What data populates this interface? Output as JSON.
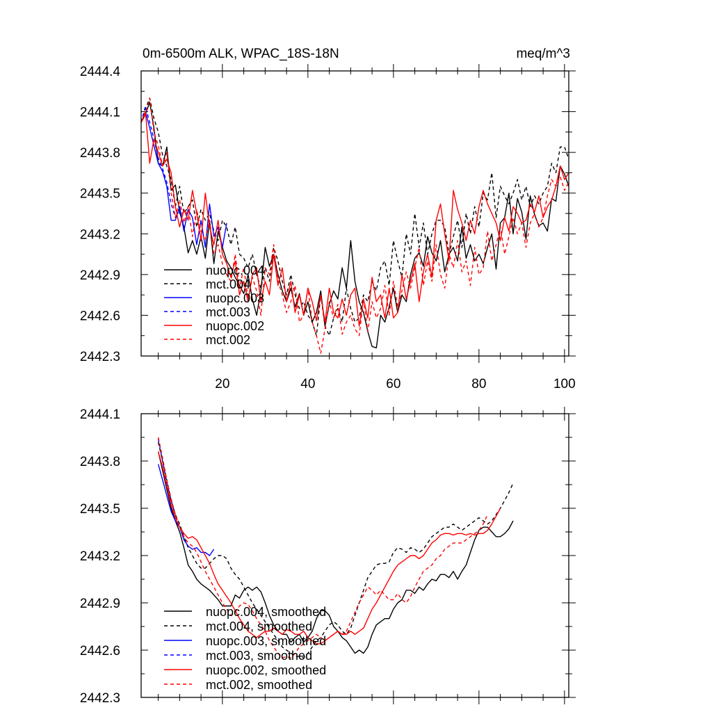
{
  "chart_data": [
    {
      "type": "line",
      "title": "0m-6500m ALK, WPAC_18S-18N",
      "units": "meq/m^3",
      "xlim": [
        1,
        101
      ],
      "ylim": [
        2442.3,
        2444.4
      ],
      "xticks": [
        20,
        40,
        60,
        80,
        100
      ],
      "yticks": [
        2442.3,
        2442.6,
        2442.9,
        2443.2,
        2443.5,
        2443.8,
        2444.1,
        2444.4
      ],
      "ytick_labels": [
        "2442.3",
        "2442.6",
        "2442.9",
        "2443.2",
        "2443.5",
        "2443.8",
        "2444.1",
        "2444.4"
      ],
      "xtick_labels": [
        "20",
        "40",
        "60",
        "80",
        "100"
      ],
      "legend_position": "lower-left",
      "series": [
        {
          "name": "nuopc.004",
          "color": "#000000",
          "dash": "solid",
          "x_start": 1,
          "values": [
            2444.02,
            2444.08,
            2444.17,
            2443.98,
            2443.72,
            2443.7,
            2443.84,
            2443.52,
            2443.56,
            2443.36,
            2443.25,
            2443.06,
            2443.15,
            2443.05,
            2443.18,
            2443.02,
            2443.3,
            2442.98,
            2443.22,
            2443.1,
            2443.0,
            2442.95,
            2442.88,
            2442.82,
            2442.76,
            2442.9,
            2442.72,
            2442.6,
            2442.78,
            2443.1,
            2442.96,
            2443.05,
            2442.9,
            2442.78,
            2442.7,
            2442.8,
            2442.66,
            2442.76,
            2442.6,
            2442.7,
            2442.55,
            2442.62,
            2442.78,
            2442.52,
            2442.68,
            2442.78,
            2442.72,
            2442.95,
            2442.8,
            2443.15,
            2442.85,
            2442.7,
            2442.62,
            2442.48,
            2442.37,
            2442.36,
            2442.6,
            2442.55,
            2442.66,
            2442.8,
            2442.62,
            2442.75,
            2442.7,
            2442.9,
            2443.02,
            2443.06,
            2442.96,
            2443.18,
            2443.06,
            2443.0,
            2443.15,
            2442.92,
            2443.05,
            2443.1,
            2443.0,
            2443.25,
            2443.02,
            2443.12,
            2443.0,
            2443.05,
            2442.98,
            2443.1,
            2443.2,
            2442.94,
            2443.28,
            2443.32,
            2443.5,
            2443.2,
            2443.46,
            2443.36,
            2443.16,
            2443.48,
            2443.34,
            2443.26,
            2443.28,
            2443.22,
            2443.46,
            2443.44,
            2443.7,
            2443.64,
            2443.55
          ]
        },
        {
          "name": "mct.004",
          "color": "#000000",
          "dash": "dashed",
          "x_start": 1,
          "values": [
            2444.02,
            2444.12,
            2444.2,
            2444.05,
            2443.95,
            2443.78,
            2443.7,
            2443.6,
            2443.4,
            2443.55,
            2443.35,
            2443.4,
            2443.45,
            2443.25,
            2443.38,
            2443.3,
            2443.35,
            2443.22,
            2443.15,
            2443.3,
            2443.25,
            2443.12,
            2443.25,
            2443.05,
            2443.02,
            2442.95,
            2443.05,
            2442.9,
            2442.8,
            2442.95,
            2442.85,
            2443.1,
            2443.0,
            2442.85,
            2442.75,
            2442.9,
            2442.75,
            2442.65,
            2442.7,
            2442.6,
            2442.55,
            2442.45,
            2442.75,
            2442.52,
            2442.45,
            2442.58,
            2442.65,
            2442.55,
            2442.8,
            2442.65,
            2442.55,
            2442.58,
            2442.75,
            2442.7,
            2442.85,
            2442.78,
            2442.95,
            2443.0,
            2442.82,
            2443.15,
            2443.0,
            2442.88,
            2443.2,
            2443.05,
            2443.35,
            2443.1,
            2443.28,
            2443.05,
            2443.2,
            2443.3,
            2443.3,
            2443.25,
            2443.05,
            2443.18,
            2443.3,
            2443.1,
            2443.35,
            2443.2,
            2443.4,
            2443.25,
            2443.5,
            2443.45,
            2443.65,
            2443.32,
            2443.55,
            2443.48,
            2443.42,
            2443.5,
            2443.6,
            2443.45,
            2443.55,
            2443.4,
            2443.48,
            2443.42,
            2443.5,
            2443.55,
            2443.72,
            2443.65,
            2443.84,
            2443.84,
            2443.75
          ]
        },
        {
          "name": "nuopc.003",
          "color": "#0000ff",
          "dash": "solid",
          "x_start": 1,
          "values": [
            2444.02,
            2444.1,
            2443.98,
            2443.85,
            2443.72,
            2443.66,
            2443.55,
            2443.3,
            2443.3,
            2443.4,
            2443.22,
            2443.38,
            2443.32,
            2443.12,
            2443.3,
            2443.1,
            2443.42,
            2443.18,
            2443.25,
            2443.1,
            2443.28
          ]
        },
        {
          "name": "mct.003",
          "color": "#0000ff",
          "dash": "dashed",
          "x_start": 1,
          "values": [
            2444.02,
            2444.14,
            2444.02,
            2443.9,
            2443.76,
            2443.68,
            2443.58,
            2443.42,
            2443.32,
            2443.36
          ]
        },
        {
          "name": "nuopc.002",
          "color": "#ff0000",
          "dash": "solid",
          "x_start": 1,
          "values": [
            2444.02,
            2444.1,
            2443.72,
            2443.9,
            2443.8,
            2443.7,
            2443.75,
            2443.65,
            2443.4,
            2443.25,
            2443.38,
            2443.3,
            2443.52,
            2443.35,
            2443.15,
            2443.5,
            2443.25,
            2443.12,
            2443.3,
            2443.05,
            2442.98,
            2442.88,
            2443.0,
            2442.75,
            2442.85,
            2442.7,
            2442.9,
            2442.95,
            2442.7,
            2442.85,
            2442.75,
            2443.05,
            2442.82,
            2442.95,
            2442.7,
            2442.85,
            2442.62,
            2442.75,
            2442.6,
            2442.8,
            2442.7,
            2442.56,
            2442.75,
            2442.55,
            2442.8,
            2442.62,
            2442.58,
            2442.72,
            2442.6,
            2442.75,
            2442.8,
            2442.52,
            2442.72,
            2442.58,
            2442.88,
            2442.7,
            2442.75,
            2442.58,
            2442.8,
            2442.58,
            2442.62,
            2442.9,
            2442.72,
            2442.85,
            2442.98,
            2442.7,
            2442.92,
            2443.05,
            2442.88,
            2443.3,
            2443.42,
            2443.2,
            2443.0,
            2443.52,
            2443.38,
            2443.28,
            2443.15,
            2443.3,
            2443.2,
            2443.4,
            2443.52,
            2443.42,
            2443.35,
            2443.28,
            2443.15,
            2443.32,
            2443.22,
            2443.4,
            2443.35,
            2443.28,
            2443.3,
            2443.42,
            2443.36,
            2443.48,
            2443.32,
            2443.4,
            2443.45,
            2443.55,
            2443.7,
            2443.6,
            2443.65
          ]
        },
        {
          "name": "mct.002",
          "color": "#ff0000",
          "dash": "dashed",
          "x_start": 1,
          "values": [
            2444.02,
            2444.08,
            2444.2,
            2443.95,
            2443.85,
            2443.7,
            2443.8,
            2443.5,
            2443.32,
            2443.45,
            2443.28,
            2443.4,
            2443.18,
            2443.38,
            2443.22,
            2443.15,
            2443.3,
            2443.05,
            2443.12,
            2442.98,
            2442.9,
            2442.85,
            2443.05,
            2442.8,
            2442.95,
            2442.72,
            2442.88,
            2442.78,
            2442.6,
            2442.95,
            2442.9,
            2443.12,
            2442.85,
            2442.75,
            2442.62,
            2442.7,
            2442.82,
            2442.55,
            2442.6,
            2442.8,
            2442.55,
            2442.45,
            2442.32,
            2442.5,
            2442.7,
            2442.58,
            2442.68,
            2442.46,
            2442.55,
            2442.6,
            2442.5,
            2442.45,
            2442.72,
            2442.48,
            2442.7,
            2442.58,
            2442.65,
            2442.82,
            2442.6,
            2442.85,
            2442.66,
            2442.78,
            2442.92,
            2442.8,
            2442.95,
            2443.1,
            2442.82,
            2443.0,
            2442.85,
            2443.12,
            2442.9,
            2442.8,
            2443.05,
            2442.95,
            2443.15,
            2442.92,
            2443.0,
            2442.82,
            2443.1,
            2442.9,
            2442.95,
            2443.22,
            2443.0,
            2443.12,
            2443.25,
            2443.05,
            2443.18,
            2443.32,
            2443.2,
            2443.28,
            2443.1,
            2443.28,
            2443.35,
            2443.25,
            2443.32,
            2443.48,
            2443.6,
            2443.55,
            2443.62,
            2443.52,
            2443.58
          ]
        }
      ]
    },
    {
      "type": "line",
      "title": "",
      "xlim": [
        1,
        101
      ],
      "ylim": [
        2442.3,
        2444.1
      ],
      "xticks": [
        20,
        40,
        60,
        80,
        100
      ],
      "yticks": [
        2442.3,
        2442.6,
        2442.9,
        2443.2,
        2443.5,
        2443.8,
        2444.1
      ],
      "ytick_labels": [
        "2442.3",
        "2442.6",
        "2442.9",
        "2443.2",
        "2443.5",
        "2443.8",
        "2444.1"
      ],
      "legend_position": "lower-left",
      "series": [
        {
          "name": "nuopc.004, smoothed",
          "color": "#000000",
          "dash": "solid",
          "x_start": 5,
          "values": [
            2443.86,
            2443.74,
            2443.62,
            2443.5,
            2443.42,
            2443.35,
            2443.25,
            2443.14,
            2443.1,
            2443.05,
            2443.02,
            2443.0,
            2442.98,
            2442.95,
            2442.92,
            2442.88,
            2442.88,
            2442.88,
            2442.95,
            2442.93,
            2442.98,
            2443.0,
            2442.98,
            2443.0,
            2442.97,
            2442.9,
            2442.82,
            2442.76,
            2442.72,
            2442.7,
            2442.7,
            2442.65,
            2442.68,
            2442.7,
            2442.65,
            2442.68,
            2442.72,
            2442.8,
            2442.85,
            2442.85,
            2442.82,
            2442.75,
            2442.72,
            2442.68,
            2442.66,
            2442.62,
            2442.58,
            2442.6,
            2442.58,
            2442.62,
            2442.7,
            2442.76,
            2442.78,
            2442.8,
            2442.8,
            2442.86,
            2442.9,
            2442.92,
            2442.98,
            2442.98,
            2442.96,
            2443.0,
            2442.98,
            2443.02,
            2443.05,
            2443.04,
            2443.08,
            2443.08,
            2443.06,
            2443.1,
            2443.05,
            2443.1,
            2443.14,
            2443.22,
            2443.3,
            2443.36,
            2443.38,
            2443.38,
            2443.35,
            2443.32,
            2443.32,
            2443.34,
            2443.37,
            2443.42
          ]
        },
        {
          "name": "mct.004, smoothed",
          "color": "#000000",
          "dash": "dashed",
          "x_start": 5,
          "values": [
            2443.92,
            2443.8,
            2443.68,
            2443.55,
            2443.46,
            2443.4,
            2443.32,
            2443.25,
            2443.2,
            2443.15,
            2443.12,
            2443.12,
            2443.15,
            2443.18,
            2443.2,
            2443.2,
            2443.18,
            2443.12,
            2443.08,
            2443.05,
            2443.0,
            2442.95,
            2442.9,
            2442.86,
            2442.82,
            2442.78,
            2442.74,
            2442.7,
            2442.66,
            2442.62,
            2442.6,
            2442.58,
            2442.56,
            2442.56,
            2442.55,
            2442.58,
            2442.62,
            2442.66,
            2442.68,
            2442.72,
            2442.76,
            2442.78,
            2442.76,
            2442.72,
            2442.7,
            2442.74,
            2442.82,
            2442.9,
            2442.98,
            2443.06,
            2443.1,
            2443.14,
            2443.15,
            2443.15,
            2443.16,
            2443.22,
            2443.25,
            2443.24,
            2443.22,
            2443.25,
            2443.24,
            2443.22,
            2443.24,
            2443.28,
            2443.32,
            2443.34,
            2443.36,
            2443.38,
            2443.38,
            2443.4,
            2443.38,
            2443.36,
            2443.38,
            2443.4,
            2443.42,
            2443.44,
            2443.42,
            2443.4,
            2443.42,
            2443.46,
            2443.5,
            2443.55,
            2443.6,
            2443.66
          ]
        },
        {
          "name": "nuopc.003, smoothed",
          "color": "#0000ff",
          "dash": "solid",
          "x_start": 5,
          "values": [
            2443.78,
            2443.68,
            2443.58,
            2443.48,
            2443.42,
            2443.38,
            2443.3,
            2443.26,
            2443.24,
            2443.25,
            2443.22,
            2443.22,
            2443.2,
            2443.24
          ]
        },
        {
          "name": "mct.003, smoothed",
          "color": "#0000ff",
          "dash": "dashed",
          "x_start": 5,
          "values": [
            2443.94,
            2443.8,
            2443.66,
            2443.55,
            2443.46
          ]
        },
        {
          "name": "nuopc.002, smoothed",
          "color": "#ff0000",
          "dash": "solid",
          "x_start": 5,
          "values": [
            2443.86,
            2443.76,
            2443.64,
            2443.52,
            2443.44,
            2443.38,
            2443.34,
            2443.31,
            2443.32,
            2443.3,
            2443.25,
            2443.2,
            2443.15,
            2443.08,
            2443.02,
            2442.98,
            2442.94,
            2442.9,
            2442.85,
            2442.8,
            2442.76,
            2442.72,
            2442.7,
            2442.68,
            2442.7,
            2442.72,
            2442.72,
            2442.74,
            2442.72,
            2442.7,
            2442.73,
            2442.72,
            2442.7,
            2442.7,
            2442.72,
            2442.68,
            2442.66,
            2442.64,
            2442.64,
            2442.66,
            2442.68,
            2442.7,
            2442.72,
            2442.7,
            2442.7,
            2442.72,
            2442.7,
            2442.72,
            2442.74,
            2442.8,
            2442.86,
            2442.9,
            2442.95,
            2443.0,
            2443.05,
            2443.1,
            2443.14,
            2443.16,
            2443.18,
            2443.2,
            2443.2,
            2443.18,
            2443.2,
            2443.24,
            2443.28,
            2443.3,
            2443.33,
            2443.34,
            2443.34,
            2443.33,
            2443.34,
            2443.34,
            2443.33,
            2443.34,
            2443.33,
            2443.34,
            2443.34,
            2443.36,
            2443.4,
            2443.45,
            2443.5
          ]
        },
        {
          "name": "mct.002, smoothed",
          "color": "#ff0000",
          "dash": "dashed",
          "x_start": 5,
          "values": [
            2443.95,
            2443.82,
            2443.68,
            2443.56,
            2443.46,
            2443.38,
            2443.32,
            2443.28,
            2443.26,
            2443.22,
            2443.16,
            2443.1,
            2443.05,
            2443.0,
            2442.95,
            2442.9,
            2442.86,
            2442.82,
            2442.84,
            2442.88,
            2442.9,
            2442.89,
            2442.85,
            2442.8,
            2442.76,
            2442.72,
            2442.66,
            2442.62,
            2442.58,
            2442.55,
            2442.56,
            2442.55,
            2442.58,
            2442.62,
            2442.64,
            2442.66,
            2442.68,
            2442.7,
            2442.68,
            2442.66,
            2442.68,
            2442.7,
            2442.72,
            2442.7,
            2442.72,
            2442.78,
            2442.84,
            2442.9,
            2442.95,
            2443.0,
            2442.98,
            2442.95,
            2442.98,
            2442.95,
            2442.92,
            2442.92,
            2442.96,
            2442.92,
            2442.9,
            2442.94,
            2443.0,
            2443.05,
            2443.1,
            2443.12,
            2443.14,
            2443.18,
            2443.2,
            2443.24,
            2443.26,
            2443.28,
            2443.28,
            2443.28,
            2443.3,
            2443.32,
            2443.34,
            2443.36,
            2443.4,
            2443.46
          ]
        }
      ]
    }
  ]
}
